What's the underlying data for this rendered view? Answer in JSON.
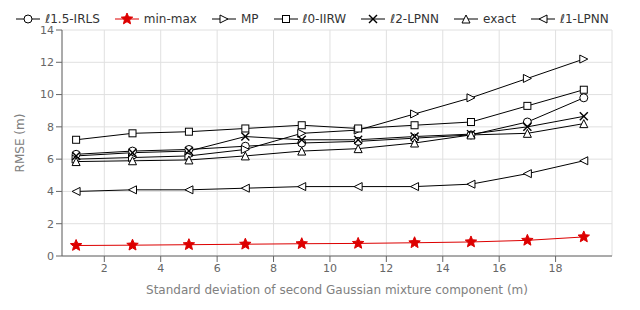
{
  "chart_data": {
    "type": "line",
    "xlabel": "Standard deviation of second Gaussian mixture component (m)",
    "ylabel": "RMSE (m)",
    "x": [
      1,
      3,
      5,
      7,
      9,
      11,
      13,
      15,
      17,
      19
    ],
    "series": [
      {
        "name": "ℓ1.5-IRLS",
        "color": "#000000",
        "marker": "circle",
        "values": [
          6.3,
          6.5,
          6.6,
          6.8,
          7.0,
          7.1,
          7.3,
          7.5,
          8.3,
          9.8
        ]
      },
      {
        "name": "min-max",
        "color": "#dd0000",
        "marker": "star",
        "values": [
          0.65,
          0.67,
          0.7,
          0.73,
          0.76,
          0.78,
          0.82,
          0.87,
          0.97,
          1.18
        ]
      },
      {
        "name": "MP",
        "color": "#000000",
        "marker": "triangle-right",
        "values": [
          6.0,
          6.1,
          6.2,
          6.6,
          7.6,
          7.8,
          8.8,
          9.8,
          11.0,
          12.2
        ]
      },
      {
        "name": "ℓ0-IIRW",
        "color": "#000000",
        "marker": "square",
        "values": [
          7.2,
          7.6,
          7.7,
          7.9,
          8.1,
          7.9,
          8.1,
          8.3,
          9.3,
          10.3
        ]
      },
      {
        "name": "ℓ2-LPNN",
        "color": "#000000",
        "marker": "x",
        "values": [
          6.2,
          6.4,
          6.5,
          7.4,
          7.2,
          7.2,
          7.4,
          7.55,
          8.0,
          8.65
        ]
      },
      {
        "name": "exact",
        "color": "#000000",
        "marker": "triangle-up",
        "values": [
          5.85,
          5.9,
          5.95,
          6.2,
          6.5,
          6.65,
          7.0,
          7.5,
          7.6,
          8.2
        ]
      },
      {
        "name": "ℓ1-LPNN",
        "color": "#000000",
        "marker": "triangle-left",
        "values": [
          4.0,
          4.1,
          4.1,
          4.2,
          4.3,
          4.3,
          4.3,
          4.45,
          5.1,
          5.9
        ]
      }
    ],
    "xlim": [
      0.5,
      20
    ],
    "ylim": [
      0,
      14
    ],
    "xticks": [
      2,
      4,
      6,
      8,
      10,
      12,
      14,
      16,
      18
    ],
    "yticks": [
      0,
      2,
      4,
      6,
      8,
      10,
      12,
      14
    ],
    "grid": true,
    "legend": "top"
  }
}
